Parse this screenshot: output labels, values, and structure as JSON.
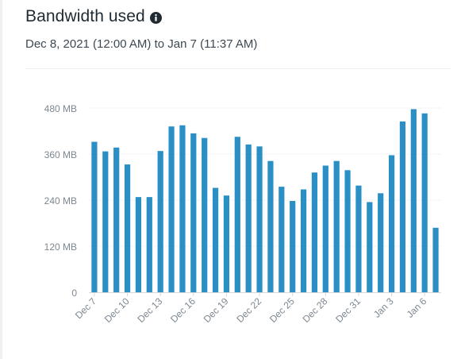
{
  "header": {
    "title": "Bandwidth used",
    "info_icon": "info-circle-icon",
    "date_range": "Dec 8, 2021 (12:00 AM) to Jan 7 (11:37 AM)"
  },
  "colors": {
    "bar": "#2a8fc4",
    "grid": "#f2f3f4",
    "axis": "#d5d9dc",
    "tick_label": "#7d8790",
    "title": "#1f2a33"
  },
  "chart_data": {
    "type": "bar",
    "title": "",
    "xlabel": "",
    "ylabel": "",
    "ylim": [
      0,
      480
    ],
    "y_ticks": [
      0,
      120,
      240,
      360,
      480
    ],
    "y_tick_labels": [
      "0",
      "120 MB",
      "240 MB",
      "360 MB",
      "480 MB"
    ],
    "grid": true,
    "categories": [
      "Dec 7",
      "Dec 8",
      "Dec 9",
      "Dec 10",
      "Dec 11",
      "Dec 12",
      "Dec 13",
      "Dec 14",
      "Dec 15",
      "Dec 16",
      "Dec 17",
      "Dec 18",
      "Dec 19",
      "Dec 20",
      "Dec 21",
      "Dec 22",
      "Dec 23",
      "Dec 24",
      "Dec 25",
      "Dec 26",
      "Dec 27",
      "Dec 28",
      "Dec 29",
      "Dec 30",
      "Dec 31",
      "Jan 1",
      "Jan 2",
      "Jan 3",
      "Jan 4",
      "Jan 5",
      "Jan 6",
      "Jan 7"
    ],
    "x_tick_labels": [
      "Dec 7",
      "",
      "",
      "Dec 10",
      "",
      "",
      "Dec 13",
      "",
      "",
      "Dec 16",
      "",
      "",
      "Dec 19",
      "",
      "",
      "Dec 22",
      "",
      "",
      "Dec 25",
      "",
      "",
      "Dec 28",
      "",
      "",
      "Dec 31",
      "",
      "",
      "Jan 3",
      "",
      "",
      "Jan 6",
      ""
    ],
    "values": [
      392,
      367,
      377,
      333,
      248,
      248,
      368,
      432,
      435,
      414,
      402,
      272,
      252,
      405,
      385,
      380,
      342,
      275,
      238,
      268,
      312,
      330,
      342,
      318,
      278,
      235,
      258,
      357,
      445,
      477,
      466,
      168
    ],
    "unit": "MB"
  }
}
